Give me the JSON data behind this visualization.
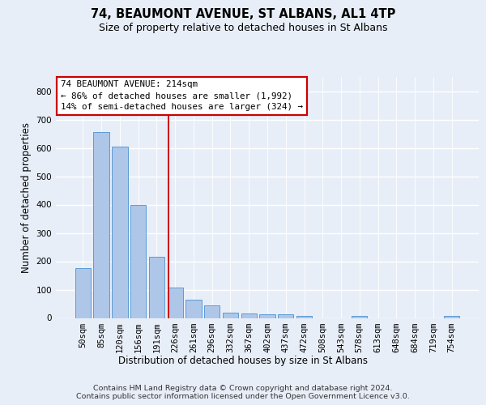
{
  "title": "74, BEAUMONT AVENUE, ST ALBANS, AL1 4TP",
  "subtitle": "Size of property relative to detached houses in St Albans",
  "xlabel": "Distribution of detached houses by size in St Albans",
  "ylabel": "Number of detached properties",
  "categories": [
    "50sqm",
    "85sqm",
    "120sqm",
    "156sqm",
    "191sqm",
    "226sqm",
    "261sqm",
    "296sqm",
    "332sqm",
    "367sqm",
    "402sqm",
    "437sqm",
    "472sqm",
    "508sqm",
    "543sqm",
    "578sqm",
    "613sqm",
    "648sqm",
    "684sqm",
    "719sqm",
    "754sqm"
  ],
  "values": [
    175,
    655,
    605,
    400,
    215,
    107,
    65,
    45,
    18,
    16,
    14,
    13,
    8,
    0,
    0,
    8,
    0,
    0,
    0,
    0,
    8
  ],
  "bar_color": "#aec6e8",
  "bar_edge_color": "#5b9bd5",
  "vline_x": 4.62,
  "vline_color": "#cc0000",
  "annotation_line1": "74 BEAUMONT AVENUE: 214sqm",
  "annotation_line2": "← 86% of detached houses are smaller (1,992)",
  "annotation_line3": "14% of semi-detached houses are larger (324) →",
  "annotation_box_color": "#ffffff",
  "annotation_box_edge": "#cc0000",
  "ylim": [
    0,
    850
  ],
  "yticks": [
    0,
    100,
    200,
    300,
    400,
    500,
    600,
    700,
    800
  ],
  "bg_color": "#e8eef8",
  "grid_color": "#ffffff",
  "footer": "Contains HM Land Registry data © Crown copyright and database right 2024.\nContains public sector information licensed under the Open Government Licence v3.0.",
  "title_fontsize": 10.5,
  "subtitle_fontsize": 9,
  "axis_label_fontsize": 8.5,
  "tick_fontsize": 7.5,
  "annotation_fontsize": 7.8,
  "footer_fontsize": 6.8
}
